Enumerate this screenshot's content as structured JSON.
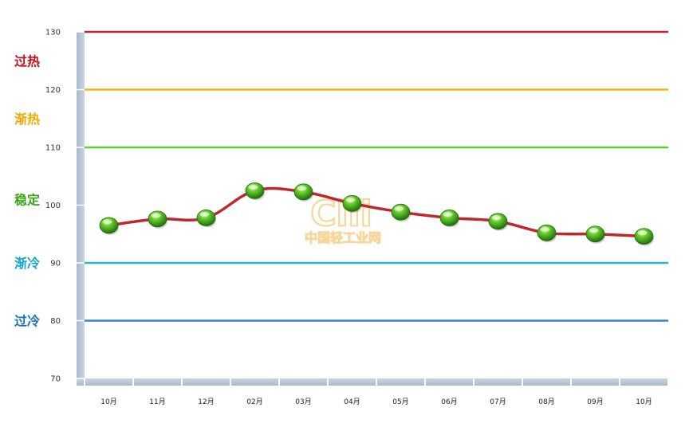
{
  "chart_data": {
    "type": "line",
    "categories": [
      "10月",
      "11月",
      "12月",
      "02月",
      "03月",
      "04月",
      "05月",
      "06月",
      "07月",
      "08月",
      "09月",
      "10月"
    ],
    "values": [
      96.5,
      97.6,
      97.8,
      102.5,
      102.3,
      100.3,
      98.8,
      97.8,
      97.2,
      95.2,
      95.0,
      94.6
    ],
    "ylim": [
      70,
      130
    ],
    "yticks": [
      "130",
      "120",
      "110",
      "100",
      "90",
      "80",
      "70"
    ],
    "grid": false,
    "line_color": "#c0272d",
    "marker_color": "#3a9a1e",
    "reference_lines": [
      {
        "value": 130,
        "color": "#c0272d"
      },
      {
        "value": 120,
        "color": "#f6b21b"
      },
      {
        "value": 110,
        "color": "#5ccc2a"
      },
      {
        "value": 90,
        "color": "#29b6d6"
      },
      {
        "value": 80,
        "color": "#2e86d1"
      }
    ],
    "zones": [
      {
        "label": "过热",
        "value": 125,
        "color": "#c8101a"
      },
      {
        "label": "渐热",
        "value": 115,
        "color": "#f2a900"
      },
      {
        "label": "稳定",
        "value": 101,
        "color": "#3aa51a"
      },
      {
        "label": "渐冷",
        "value": 90,
        "color": "#13a6d0"
      },
      {
        "label": "过冷",
        "value": 80,
        "color": "#1a74bf"
      }
    ]
  },
  "watermark": {
    "logo_text": "Clii",
    "text": "中国轻工业网"
  }
}
